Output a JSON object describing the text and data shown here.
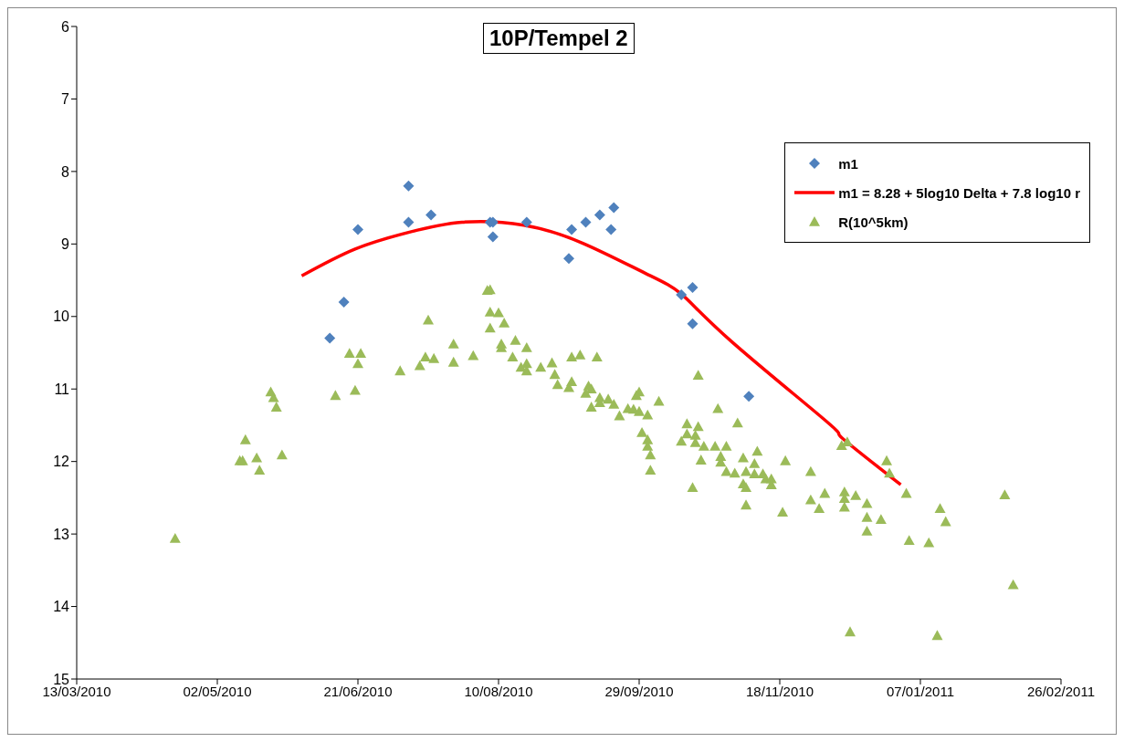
{
  "chart_data": {
    "type": "scatter",
    "title": "10P/Tempel 2",
    "xlim": [
      "2010-03-13",
      "2011-02-26"
    ],
    "xticks": [
      {
        "value": "2010-03-13",
        "label": "13/03/2010"
      },
      {
        "value": "2010-05-02",
        "label": "02/05/2010"
      },
      {
        "value": "2010-06-21",
        "label": "21/06/2010"
      },
      {
        "value": "2010-08-10",
        "label": "10/08/2010"
      },
      {
        "value": "2010-09-29",
        "label": "29/09/2010"
      },
      {
        "value": "2010-11-18",
        "label": "18/11/2010"
      },
      {
        "value": "2011-01-07",
        "label": "07/01/2011"
      },
      {
        "value": "2011-02-26",
        "label": "26/02/2011"
      }
    ],
    "ylim": [
      15,
      6
    ],
    "yticks": [
      6,
      7,
      8,
      9,
      10,
      11,
      12,
      13,
      14,
      15
    ],
    "grid": false,
    "legend": "top right",
    "series": [
      {
        "name": "m1",
        "marker": "diamond",
        "color": "#4f81bd",
        "x": [
          "2010-06-11",
          "2010-06-16",
          "2010-06-21",
          "2010-07-09",
          "2010-07-09",
          "2010-07-17",
          "2010-08-07",
          "2010-08-08",
          "2010-08-08",
          "2010-08-20",
          "2010-09-04",
          "2010-09-05",
          "2010-09-10",
          "2010-09-15",
          "2010-09-19",
          "2010-09-20",
          "2010-10-14",
          "2010-10-18",
          "2010-10-18",
          "2010-11-07"
        ],
        "values": [
          10.3,
          9.8,
          8.8,
          8.2,
          8.7,
          8.6,
          8.7,
          8.7,
          8.9,
          8.7,
          9.2,
          8.8,
          8.7,
          8.6,
          8.8,
          8.5,
          9.7,
          9.6,
          10.1,
          11.1
        ]
      },
      {
        "name": "m1 = 8.28 + 5log10 Delta + 7.8 log10 r",
        "type": "line",
        "marker": "none",
        "line_style": "solid",
        "color": "#ff0000",
        "x": [
          "2010-06-01",
          "2010-06-20",
          "2010-07-09",
          "2010-07-28",
          "2010-08-19",
          "2010-09-09",
          "2010-10-01",
          "2010-10-14",
          "2010-11-01",
          "2010-12-05",
          "2010-12-10",
          "2010-12-31"
        ],
        "values": [
          9.44,
          9.07,
          8.84,
          8.7,
          8.74,
          8.99,
          9.4,
          9.69,
          10.35,
          11.46,
          11.67,
          12.32
        ]
      },
      {
        "name": "R(10^5km)",
        "marker": "triangle",
        "color": "#9bbb59",
        "x": [
          "2010-04-17",
          "2010-05-10",
          "2010-05-11",
          "2010-05-12",
          "2010-05-16",
          "2010-05-17",
          "2010-05-25",
          "2010-05-21",
          "2010-05-22",
          "2010-05-23",
          "2010-06-13",
          "2010-06-20",
          "2010-06-18",
          "2010-06-22",
          "2010-06-21",
          "2010-07-06",
          "2010-07-13",
          "2010-07-15",
          "2010-07-18",
          "2010-07-16",
          "2010-07-25",
          "2010-07-25",
          "2010-08-01",
          "2010-08-06",
          "2010-08-07",
          "2010-08-07",
          "2010-08-10",
          "2010-08-12",
          "2010-08-07",
          "2010-08-11",
          "2010-08-11",
          "2010-08-16",
          "2010-08-20",
          "2010-08-15",
          "2010-08-18",
          "2010-08-20",
          "2010-08-20",
          "2010-08-25",
          "2010-08-29",
          "2010-08-30",
          "2010-08-31",
          "2010-09-05",
          "2010-09-08",
          "2010-09-14",
          "2010-09-05",
          "2010-09-04",
          "2010-09-11",
          "2010-09-12",
          "2010-09-10",
          "2010-09-15",
          "2010-09-12",
          "2010-09-15",
          "2010-09-18",
          "2010-09-20",
          "2010-09-22",
          "2010-09-25",
          "2010-09-27",
          "2010-09-29",
          "2010-10-02",
          "2010-09-29",
          "2010-09-28",
          "2010-10-06",
          "2010-09-30",
          "2010-10-02",
          "2010-10-02",
          "2010-10-03",
          "2010-10-03",
          "2010-10-16",
          "2010-10-20",
          "2010-10-14",
          "2010-10-16",
          "2010-10-19",
          "2010-10-19",
          "2010-10-18",
          "2010-10-20",
          "2010-10-22",
          "2010-10-21",
          "2010-10-26",
          "2010-10-30",
          "2010-10-27",
          "2010-11-03",
          "2010-10-28",
          "2010-10-28",
          "2010-10-30",
          "2010-11-02",
          "2010-11-05",
          "2010-11-10",
          "2010-11-09",
          "2010-11-06",
          "2010-11-09",
          "2010-11-12",
          "2010-11-13",
          "2010-11-15",
          "2010-11-15",
          "2010-11-05",
          "2010-11-06",
          "2010-11-06",
          "2010-11-19",
          "2010-11-20",
          "2010-11-29",
          "2010-11-29",
          "2010-12-02",
          "2010-12-04",
          "2010-12-11",
          "2010-12-11",
          "2010-12-11",
          "2010-12-15",
          "2010-12-10",
          "2010-12-12",
          "2010-12-13",
          "2010-12-19",
          "2010-12-19",
          "2010-12-19",
          "2010-12-24",
          "2010-12-26",
          "2010-12-27",
          "2011-01-02",
          "2011-01-03",
          "2011-01-10",
          "2011-01-14",
          "2011-01-16",
          "2011-01-13",
          "2011-02-06",
          "2011-02-09"
        ],
        "values": [
          13.06,
          11.99,
          11.99,
          11.7,
          11.95,
          12.12,
          11.91,
          11.04,
          11.12,
          11.25,
          11.09,
          11.02,
          10.51,
          10.51,
          10.65,
          10.75,
          10.68,
          10.56,
          10.58,
          10.05,
          10.63,
          10.38,
          10.54,
          9.64,
          9.63,
          9.94,
          9.95,
          10.09,
          10.16,
          10.38,
          10.43,
          10.33,
          10.43,
          10.56,
          10.7,
          10.65,
          10.75,
          10.7,
          10.64,
          10.8,
          10.94,
          10.56,
          10.53,
          10.56,
          10.9,
          10.98,
          10.96,
          11.0,
          11.06,
          11.12,
          11.25,
          11.19,
          11.14,
          11.21,
          11.37,
          11.27,
          11.28,
          11.31,
          11.36,
          11.04,
          11.09,
          11.17,
          11.6,
          11.7,
          11.79,
          11.91,
          12.12,
          11.48,
          11.52,
          11.72,
          11.62,
          11.64,
          11.74,
          12.36,
          10.81,
          11.79,
          11.98,
          11.79,
          11.79,
          11.27,
          11.47,
          11.93,
          12.01,
          12.14,
          12.16,
          11.95,
          11.86,
          12.03,
          12.14,
          12.17,
          12.17,
          12.24,
          12.24,
          12.32,
          12.31,
          12.36,
          12.6,
          12.7,
          11.99,
          12.14,
          12.53,
          12.65,
          12.44,
          12.42,
          12.51,
          12.63,
          12.47,
          11.78,
          11.73,
          14.35,
          12.58,
          12.77,
          12.96,
          12.8,
          11.99,
          12.16,
          12.44,
          13.09,
          13.12,
          12.65,
          12.83,
          14.4,
          12.46,
          13.7
        ]
      }
    ]
  }
}
